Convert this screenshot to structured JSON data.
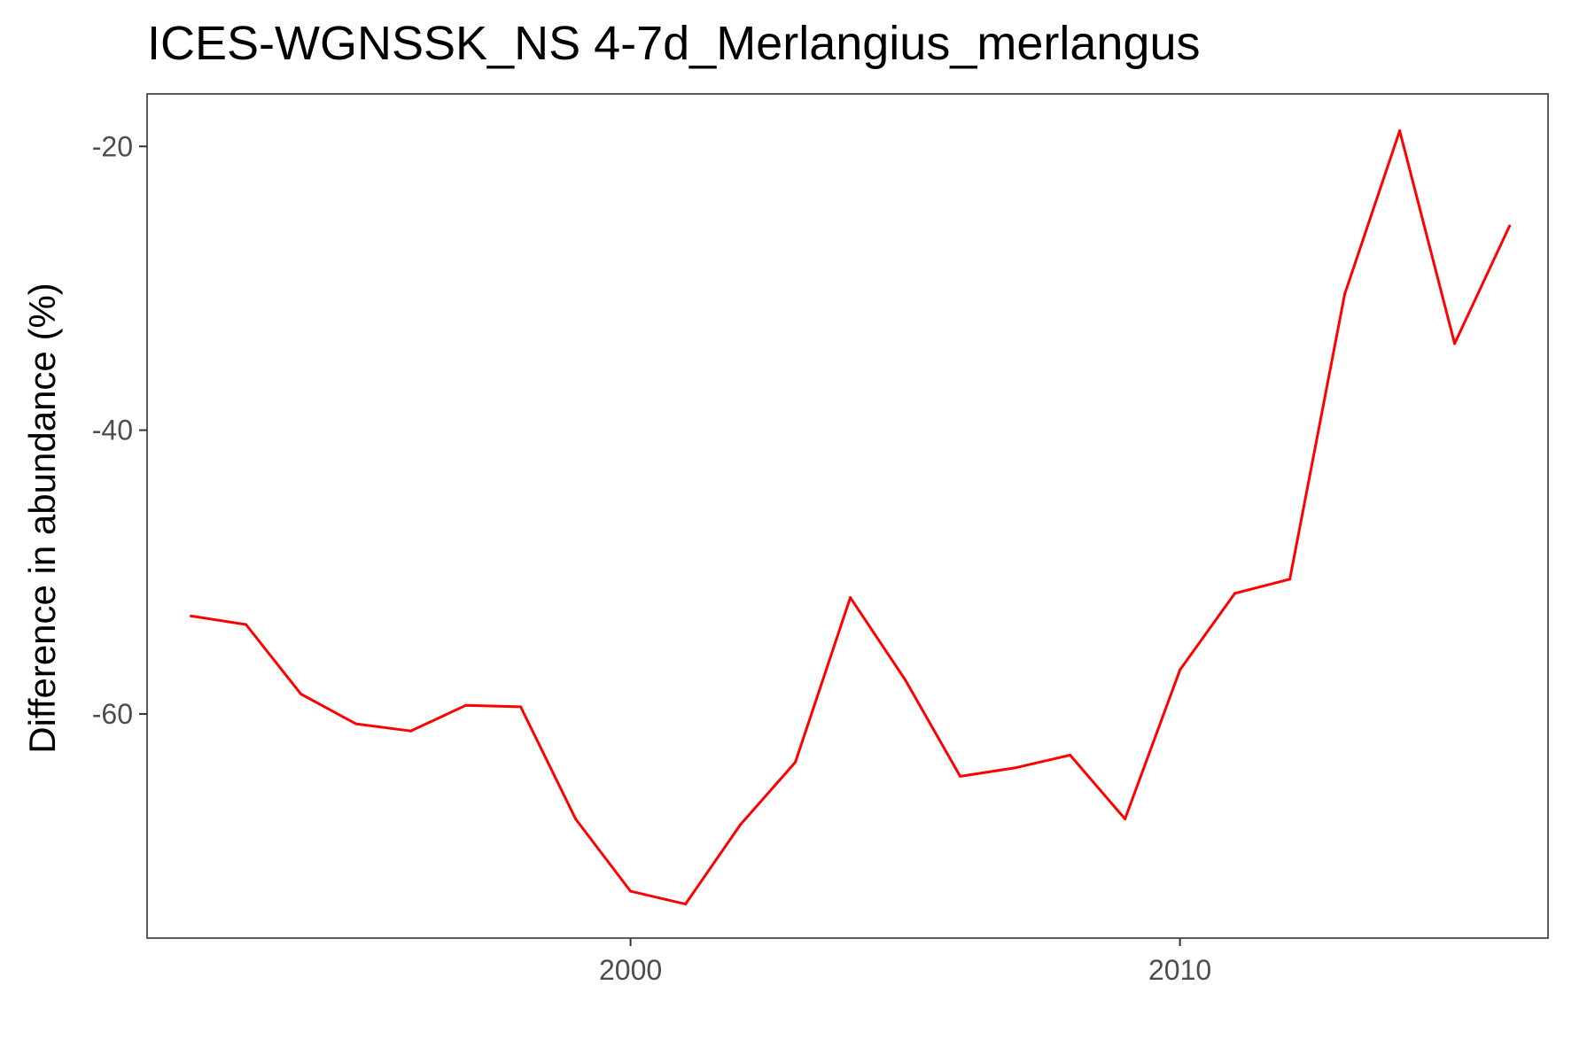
{
  "chart_data": {
    "type": "line",
    "title": "ICES-WGNSSK_NS 4-7d_Merlangius_merlangus",
    "xlabel": "",
    "ylabel": "Difference in abundance (%)",
    "xlim": [
      1991.2,
      2016.7
    ],
    "ylim": [
      -75.8,
      -16.3
    ],
    "x_ticks": [
      2000,
      2010
    ],
    "x_tick_labels": [
      "2000",
      "2010"
    ],
    "y_ticks": [
      -60,
      -40,
      -20
    ],
    "y_tick_labels": [
      "-60",
      "-40",
      "-20"
    ],
    "grid": false,
    "legend": "none",
    "series": [
      {
        "color": "#ff0000",
        "x": [
          1992,
          1993,
          1994,
          1995,
          1996,
          1997,
          1998,
          1999,
          2000,
          2001,
          2002,
          2003,
          2004,
          2005,
          2006,
          2007,
          2008,
          2009,
          2010,
          2011,
          2012,
          2013,
          2014,
          2015,
          2016
        ],
        "y": [
          -53.1,
          -53.7,
          -58.6,
          -60.7,
          -61.2,
          -59.4,
          -59.5,
          -67.4,
          -72.5,
          -73.4,
          -67.8,
          -63.4,
          -51.8,
          -57.6,
          -64.4,
          -63.8,
          -62.9,
          -67.4,
          -56.9,
          -51.5,
          -50.5,
          -30.4,
          -18.9,
          -33.9,
          -25.6
        ]
      }
    ]
  }
}
